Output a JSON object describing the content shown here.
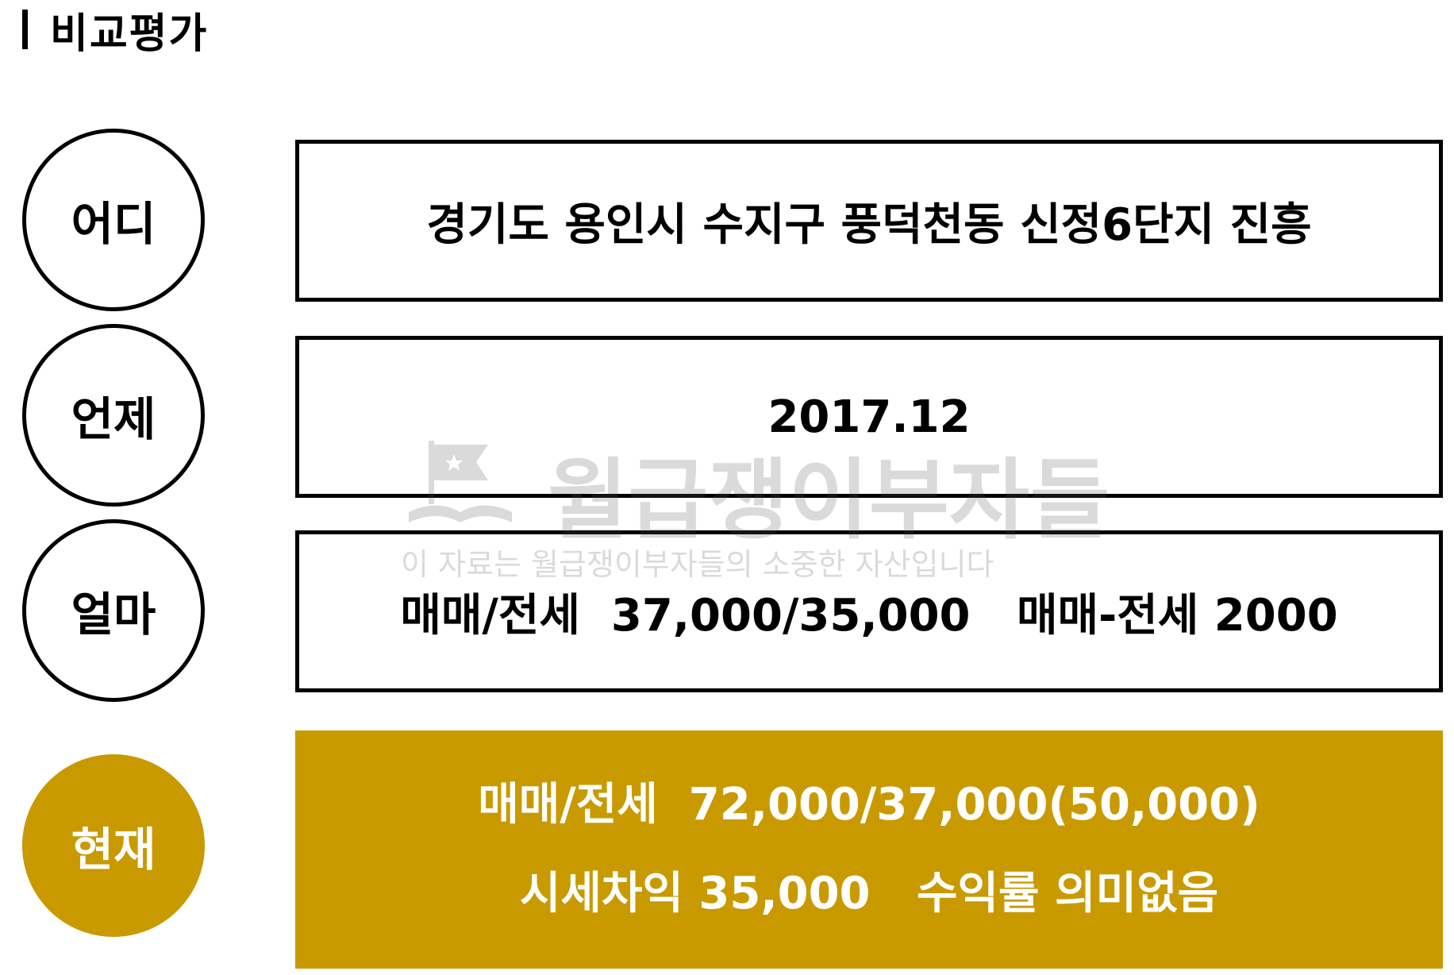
{
  "header": {
    "title": "비교평가"
  },
  "rows": [
    {
      "label": "어디",
      "content": "경기도 용인시 수지구 풍덕천동 신정6단지 진흥"
    },
    {
      "label": "언제",
      "content": "2017.12"
    },
    {
      "label": "얼마",
      "content": "매매/전세  37,000/35,000   매매-전세 2000"
    }
  ],
  "current": {
    "label": "현재",
    "line1": "매매/전세  72,000/37,000(50,000)",
    "line2": "시세차익 35,000   수익률 의미없음"
  },
  "watermark": {
    "title": "월급쟁이부자들",
    "subtitle": "이 자료는 월급쟁이부자들의 소중한 자산입니다"
  },
  "colors": {
    "accent": "#C89A00",
    "border": "#000000",
    "text": "#000000",
    "accent_text": "#FFFFFF"
  }
}
